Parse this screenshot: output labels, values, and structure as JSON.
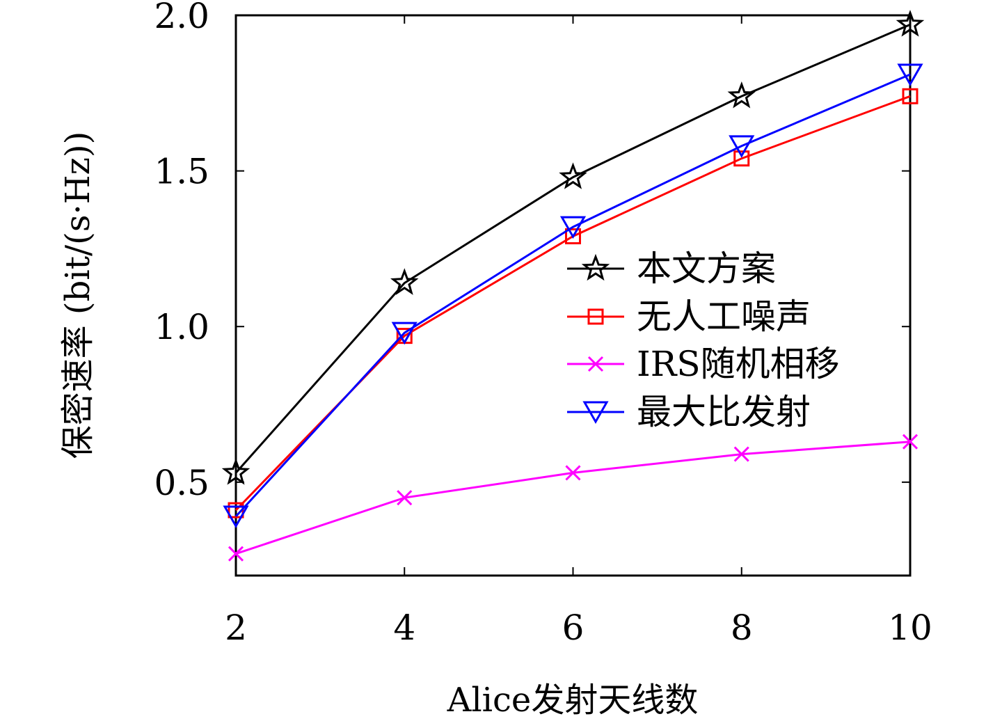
{
  "chart_data": {
    "type": "line",
    "xlabel": "Alice发射天线数",
    "ylabel": "保密速率 (bit/(s·Hz))",
    "x": [
      2,
      4,
      6,
      8,
      10
    ],
    "x_ticks": [
      "2",
      "4",
      "6",
      "8",
      "10"
    ],
    "y_ticks": [
      "0.5",
      "1.0",
      "1.5",
      "2.0"
    ],
    "xlim": [
      2,
      10
    ],
    "ylim": [
      0.2,
      2.0
    ],
    "grid": false,
    "legend_position": "center-right",
    "series": [
      {
        "name": "本文方案",
        "values": [
          0.53,
          1.14,
          1.48,
          1.74,
          1.97
        ],
        "color": "#000000",
        "marker": "star"
      },
      {
        "name": "无人工噪声",
        "values": [
          0.41,
          0.97,
          1.29,
          1.54,
          1.74
        ],
        "color": "#ff0000",
        "marker": "square"
      },
      {
        "name": "IRS随机相移",
        "values": [
          0.27,
          0.45,
          0.53,
          0.59,
          0.63
        ],
        "color": "#ff00ff",
        "marker": "x"
      },
      {
        "name": "最大比发射",
        "values": [
          0.39,
          0.98,
          1.32,
          1.58,
          1.81
        ],
        "color": "#0000ff",
        "marker": "triangle-down"
      }
    ]
  }
}
